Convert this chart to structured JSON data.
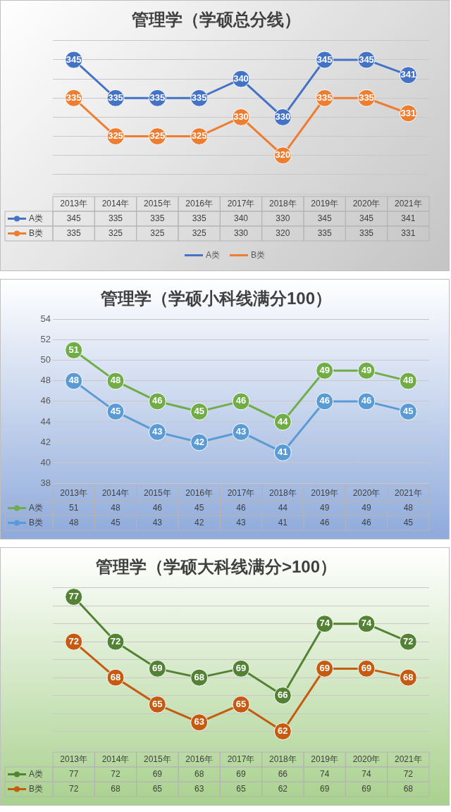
{
  "chart_data": [
    {
      "type": "line",
      "title": "管理学（学硕总分线）",
      "categories": [
        "2013年",
        "2014年",
        "2015年",
        "2016年",
        "2017年",
        "2018年",
        "2019年",
        "2020年",
        "2021年"
      ],
      "series": [
        {
          "name": "A类",
          "color": "#4472c4",
          "values": [
            345,
            335,
            335,
            335,
            340,
            330,
            345,
            345,
            341
          ]
        },
        {
          "name": "B类",
          "color": "#ed7d31",
          "values": [
            335,
            325,
            325,
            325,
            330,
            320,
            335,
            335,
            331
          ]
        }
      ],
      "annotations": [
        {
          "text": "345",
          "x": "2013年",
          "y": 345
        },
        {
          "text": "335",
          "x": "2014年",
          "y": 335
        },
        {
          "text": "335",
          "x": "2015年",
          "y": 335
        },
        {
          "text": "335",
          "x": "2016年",
          "y": 335
        },
        {
          "text": "340",
          "x": "2017年",
          "y": 340
        },
        {
          "text": "330",
          "x": "2018年",
          "y": 330
        },
        {
          "text": "345",
          "x": "2019年",
          "y": 345
        },
        {
          "text": "345",
          "x": "2020年",
          "y": 345
        },
        {
          "text": "341",
          "x": "2021年",
          "y": 341
        },
        {
          "text": "335",
          "x": "2013年",
          "y": 335
        },
        {
          "text": "325",
          "x": "2014年",
          "y": 325
        },
        {
          "text": "325",
          "x": "2015年",
          "y": 325
        },
        {
          "text": "325",
          "x": "2016年",
          "y": 325
        },
        {
          "text": "330",
          "x": "2017年",
          "y": 330
        },
        {
          "text": "320",
          "x": "2018年",
          "y": 320
        },
        {
          "text": "335",
          "x": "2019年",
          "y": 335
        },
        {
          "text": "335",
          "x": "2020年",
          "y": 335
        },
        {
          "text": "331",
          "x": "2021年",
          "y": 331
        }
      ],
      "ylim": [
        310,
        350
      ],
      "yticks": [
        {
          "value": 310,
          "label": null
        },
        {
          "value": 315,
          "label": null
        },
        {
          "value": 320,
          "label": null
        },
        {
          "value": 325,
          "label": null
        },
        {
          "value": 330,
          "label": null
        },
        {
          "value": 335,
          "label": null
        },
        {
          "value": 340,
          "label": null
        },
        {
          "value": 345,
          "label": null
        },
        {
          "value": 350,
          "label": null
        }
      ],
      "tick_labels": "x",
      "grid": "y",
      "legend": "bottom",
      "marker": "circle",
      "line_style": "solid",
      "data_labels": true
    },
    {
      "type": "line",
      "title": "管理学（学硕小科线满分100）",
      "categories": [
        "2013年",
        "2014年",
        "2015年",
        "2016年",
        "2017年",
        "2018年",
        "2019年",
        "2020年",
        "2021年"
      ],
      "series": [
        {
          "name": "A类",
          "color": "#70ad47",
          "values": [
            51,
            48,
            46,
            45,
            46,
            44,
            49,
            49,
            48
          ]
        },
        {
          "name": "B类",
          "color": "#5b9bd5",
          "values": [
            48,
            45,
            43,
            42,
            43,
            41,
            46,
            46,
            45
          ]
        }
      ],
      "annotations": [
        {
          "text": "51",
          "x": "2013年",
          "y": 51
        },
        {
          "text": "48",
          "x": "2014年",
          "y": 48
        },
        {
          "text": "46",
          "x": "2015年",
          "y": 46
        },
        {
          "text": "45",
          "x": "2016年",
          "y": 45
        },
        {
          "text": "46",
          "x": "2017年",
          "y": 46
        },
        {
          "text": "44",
          "x": "2018年",
          "y": 44
        },
        {
          "text": "49",
          "x": "2019年",
          "y": 49
        },
        {
          "text": "49",
          "x": "2020年",
          "y": 49
        },
        {
          "text": "48",
          "x": "2021年",
          "y": 48
        },
        {
          "text": "48",
          "x": "2013年",
          "y": 48
        },
        {
          "text": "45",
          "x": "2014年",
          "y": 45
        },
        {
          "text": "43",
          "x": "2015年",
          "y": 43
        },
        {
          "text": "42",
          "x": "2016年",
          "y": 42
        },
        {
          "text": "43",
          "x": "2017年",
          "y": 43
        },
        {
          "text": "41",
          "x": "2018年",
          "y": 41
        },
        {
          "text": "46",
          "x": "2019年",
          "y": 46
        },
        {
          "text": "46",
          "x": "2020年",
          "y": 46
        },
        {
          "text": "45",
          "x": "2021年",
          "y": 45
        }
      ],
      "ylim": [
        38,
        54
      ],
      "yticks": [
        38,
        40,
        42,
        44,
        46,
        48,
        50,
        52,
        54
      ],
      "grid": "y",
      "legend": "bottom left",
      "marker": "circle",
      "line_style": "solid",
      "data_labels": true
    },
    {
      "type": "line",
      "title": "管理学（学硕大科线满分>100）",
      "categories": [
        "2013年",
        "2014年",
        "2015年",
        "2016年",
        "2017年",
        "2018年",
        "2019年",
        "2020年",
        "2021年"
      ],
      "series": [
        {
          "name": "A类",
          "color": "#548235",
          "values": [
            77,
            72,
            69,
            68,
            69,
            66,
            74,
            74,
            72
          ]
        },
        {
          "name": "B类",
          "color": "#c55a11",
          "values": [
            72,
            68,
            65,
            63,
            65,
            62,
            69,
            69,
            68
          ]
        }
      ],
      "annotations": [
        {
          "text": "77",
          "x": "2013年",
          "y": 77
        },
        {
          "text": "72",
          "x": "2014年",
          "y": 72
        },
        {
          "text": "69",
          "x": "2015年",
          "y": 69
        },
        {
          "text": "68",
          "x": "2016年",
          "y": 68
        },
        {
          "text": "69",
          "x": "2017年",
          "y": 69
        },
        {
          "text": "66",
          "x": "2018年",
          "y": 66
        },
        {
          "text": "74",
          "x": "2019年",
          "y": 74
        },
        {
          "text": "74",
          "x": "2020年",
          "y": 74
        },
        {
          "text": "72",
          "x": "2021年",
          "y": 72
        },
        {
          "text": "72",
          "x": "2013年",
          "y": 72
        },
        {
          "text": "68",
          "x": "2014年",
          "y": 68
        },
        {
          "text": "65",
          "x": "2015年",
          "y": 65
        },
        {
          "text": "63",
          "x": "2016年",
          "y": 63
        },
        {
          "text": "65",
          "x": "2017年",
          "y": 65
        },
        {
          "text": "62",
          "x": "2018年",
          "y": 62
        },
        {
          "text": "69",
          "x": "2019年",
          "y": 69
        },
        {
          "text": "69",
          "x": "2020年",
          "y": 69
        },
        {
          "text": "68",
          "x": "2021年",
          "y": 68
        }
      ],
      "ylim": [
        60,
        78
      ],
      "yticks": [
        {
          "value": 60,
          "label": null
        },
        {
          "value": 62,
          "label": null
        },
        {
          "value": 64,
          "label": null
        },
        {
          "value": 66,
          "label": null
        },
        {
          "value": 68,
          "label": null
        },
        {
          "value": 70,
          "label": null
        },
        {
          "value": 72,
          "label": null
        },
        {
          "value": 74,
          "label": null
        },
        {
          "value": 76,
          "label": null
        },
        {
          "value": 78,
          "label": null
        }
      ],
      "tick_labels": "x",
      "grid": "y",
      "legend": "bottom left",
      "marker": "circle",
      "line_style": "solid",
      "data_labels": true
    }
  ]
}
